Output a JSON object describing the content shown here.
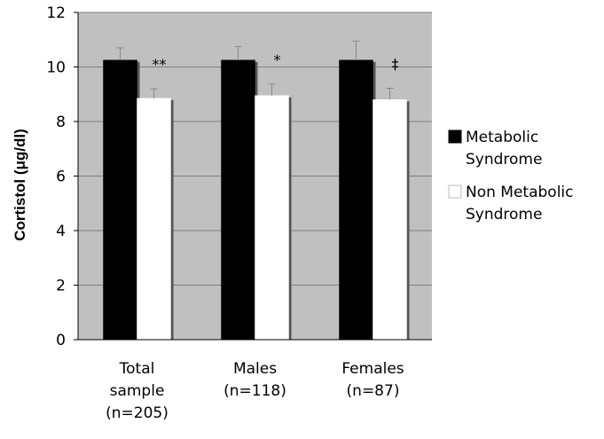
{
  "chart_data": {
    "type": "bar",
    "categories": [
      [
        "Total",
        "sample",
        "(n=205)"
      ],
      [
        "Males",
        "(n=118)"
      ],
      [
        "Females",
        "(n=87)"
      ]
    ],
    "series": [
      {
        "name": [
          "Metabolic",
          "Syndrome"
        ],
        "values": [
          10.25,
          10.25,
          10.25
        ],
        "errors": [
          0.45,
          0.5,
          0.7
        ],
        "color": "#000000"
      },
      {
        "name": [
          "Non Metabolic",
          "Syndrome"
        ],
        "values": [
          8.85,
          8.95,
          8.8
        ],
        "errors": [
          0.35,
          0.42,
          0.42
        ],
        "color": "#ffffff"
      }
    ],
    "significance": [
      "**",
      "*",
      "‡"
    ],
    "ylabel": "Cortistol (μg/dl)",
    "xlabel": "",
    "title": "",
    "ylim": [
      0,
      12
    ],
    "yticks": [
      0,
      2,
      4,
      6,
      8,
      10,
      12
    ],
    "grid": true,
    "legend": "right",
    "plot_background": "#c0c0c0"
  }
}
